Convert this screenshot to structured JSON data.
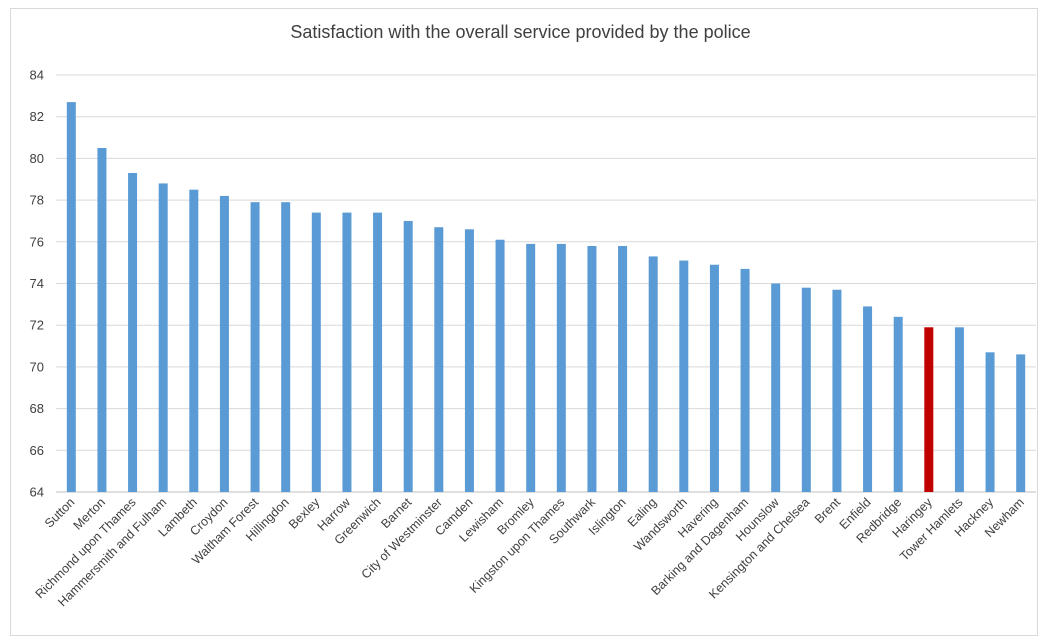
{
  "chart_data": {
    "type": "bar",
    "title": "Satisfaction with the overall service provided by the police",
    "xlabel": "",
    "ylabel": "",
    "ylim": [
      64,
      84
    ],
    "yticks": [
      64,
      66,
      68,
      70,
      72,
      74,
      76,
      78,
      80,
      82,
      84
    ],
    "grid": true,
    "legend": "none",
    "colors": {
      "default": "#5b9bd5",
      "highlight": "#c00000",
      "grid": "#d9d9d9",
      "text": "#404040"
    },
    "highlight_category": "Haringey",
    "categories": [
      "Sutton",
      "Merton",
      "Richmond upon Thames",
      "Hammersmith and Fulham",
      "Lambeth",
      "Croydon",
      "Waltham Forest",
      "Hillingdon",
      "Bexley",
      "Harrow",
      "Greenwich",
      "Barnet",
      "City of Westminster",
      "Camden",
      "Lewisham",
      "Bromley",
      "Kingston upon Thames",
      "Southwark",
      "Islington",
      "Ealing",
      "Wandsworth",
      "Havering",
      "Barking and Dagenham",
      "Hounslow",
      "Kensington and Chelsea",
      "Brent",
      "Enfield",
      "Redbridge",
      "Haringey",
      "Tower Hamlets",
      "Hackney",
      "Newham"
    ],
    "values": [
      82.7,
      80.5,
      79.3,
      78.8,
      78.5,
      78.2,
      77.9,
      77.9,
      77.4,
      77.4,
      77.4,
      77.0,
      76.7,
      76.6,
      76.1,
      75.9,
      75.9,
      75.8,
      75.8,
      75.3,
      75.1,
      74.9,
      74.7,
      74.0,
      73.8,
      73.7,
      72.9,
      72.4,
      71.9,
      71.9,
      70.7,
      70.6
    ]
  }
}
